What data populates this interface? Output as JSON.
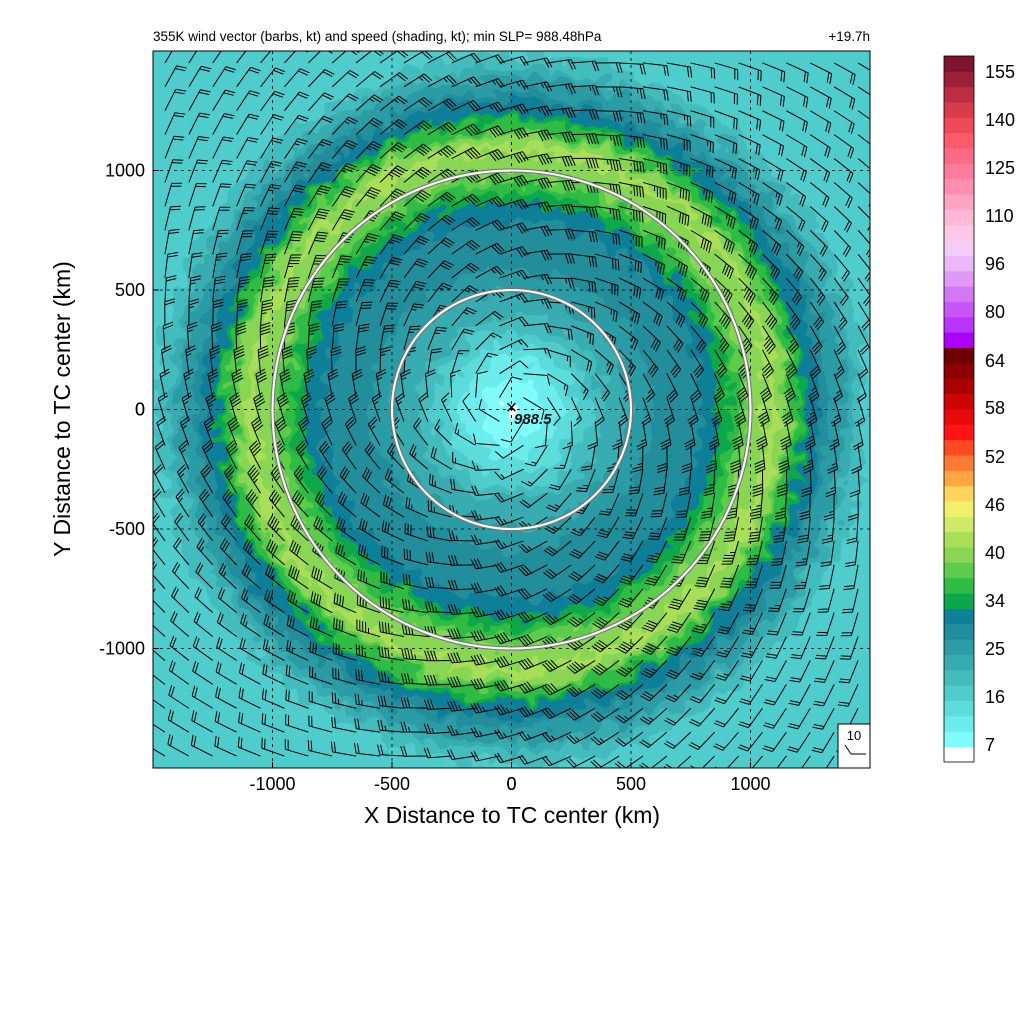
{
  "chart_data": {
    "type": "heatmap",
    "title": "355K wind vector (barbs, kt) and speed (shading, kt); min SLP= 988.48hPa",
    "time_label": "+19.7h",
    "xlabel": "X Distance to TC center (km)",
    "ylabel": "Y Distance to TC center (km)",
    "xlim": [
      -1500,
      1500
    ],
    "ylim": [
      -1500,
      1500
    ],
    "x_ticks": [
      -1000,
      -500,
      0,
      500,
      1000
    ],
    "y_ticks": [
      -1000,
      -500,
      0,
      500,
      1000
    ],
    "grid": true,
    "grid_style": "dashed",
    "center_marker": {
      "x": 0,
      "y": 0,
      "symbol": "×",
      "label": "988.5"
    },
    "range_circles_km": [
      500,
      1000
    ],
    "wind_speed_field": {
      "description_profile_km": [
        0,
        200,
        400,
        600,
        800,
        1000,
        1100,
        1300,
        1500
      ],
      "speed_kt_profile": [
        6,
        12,
        22,
        28,
        31,
        40,
        43,
        30,
        18
      ],
      "max_band_radius_km": 1080,
      "max_band_speed_kt": 45
    },
    "wind_barbs": {
      "rotation": "counterclockwise",
      "reference_barb_label": "10"
    },
    "colorbar": {
      "tick_labels": [
        "155",
        "140",
        "125",
        "110",
        "96",
        "80",
        "64",
        "58",
        "52",
        "46",
        "40",
        "34",
        "25",
        "16",
        "7"
      ],
      "colors": [
        "#ffffff",
        "#80fcfc",
        "#6cecec",
        "#5ddcdc",
        "#50cccc",
        "#43bcbc",
        "#37acb0",
        "#2c9ca6",
        "#208e9c",
        "#107f98",
        "#0aa84a",
        "#2ebc44",
        "#5ccc4c",
        "#88d653",
        "#a8de58",
        "#cfea66",
        "#f0f06e",
        "#ffd45a",
        "#ffa643",
        "#ff7a32",
        "#ff4a22",
        "#ff1414",
        "#e80a0a",
        "#cc0404",
        "#aa0000",
        "#8c0000",
        "#6e0000",
        "#aa00ff",
        "#bb33ff",
        "#c855f7",
        "#d477f3",
        "#e099f5",
        "#ebb7f7",
        "#f4cdf6",
        "#ffc8e6",
        "#ffb8d6",
        "#ffa4c4",
        "#ff8fb0",
        "#ff7c9a",
        "#ff6a84",
        "#ff5a6a",
        "#f04a58",
        "#d83b4c",
        "#bc2c42",
        "#9c1f38",
        "#7e1530"
      ]
    }
  }
}
